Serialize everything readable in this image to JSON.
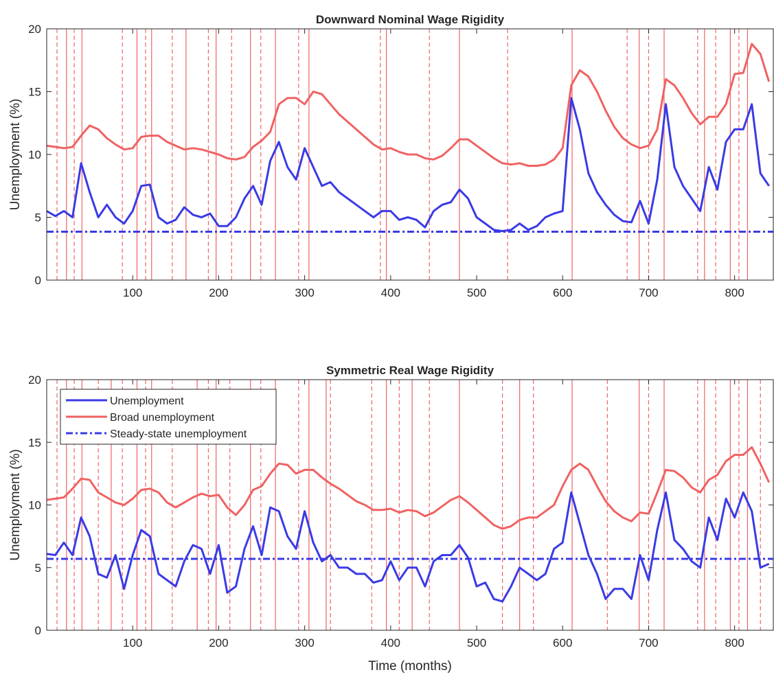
{
  "chart_data": [
    {
      "type": "line",
      "title": "Downward Nominal Wage Rigidity",
      "y_label": "Unemployment (%)",
      "xlim": [
        0,
        845
      ],
      "ylim": [
        0,
        20
      ],
      "xticks": [
        100,
        200,
        300,
        400,
        500,
        600,
        700,
        800
      ],
      "yticks": [
        0,
        5,
        10,
        15,
        20
      ],
      "x": [
        0,
        10,
        20,
        30,
        40,
        50,
        60,
        70,
        80,
        90,
        100,
        110,
        120,
        130,
        140,
        150,
        160,
        170,
        180,
        190,
        200,
        210,
        220,
        230,
        240,
        250,
        260,
        270,
        280,
        290,
        300,
        310,
        320,
        330,
        340,
        350,
        360,
        370,
        380,
        390,
        400,
        410,
        420,
        430,
        440,
        450,
        460,
        470,
        480,
        490,
        500,
        510,
        520,
        530,
        540,
        550,
        560,
        570,
        580,
        590,
        600,
        610,
        620,
        630,
        640,
        650,
        660,
        670,
        680,
        690,
        700,
        710,
        720,
        730,
        740,
        750,
        760,
        770,
        780,
        790,
        800,
        810,
        820,
        830,
        840
      ],
      "series": [
        {
          "color": "#3a3ae6",
          "values": [
            5.5,
            5.1,
            5.5,
            5.0,
            9.3,
            7.0,
            5.0,
            6.0,
            5.0,
            4.5,
            5.5,
            7.5,
            7.6,
            5.0,
            4.5,
            4.8,
            5.8,
            5.2,
            5.0,
            5.3,
            4.3,
            4.3,
            5.0,
            6.5,
            7.5,
            6.0,
            9.5,
            11.0,
            9.0,
            8.0,
            10.5,
            9.0,
            7.5,
            7.8,
            7.0,
            6.5,
            6.0,
            5.5,
            5.0,
            5.5,
            5.5,
            4.8,
            5.0,
            4.8,
            4.2,
            5.5,
            6.0,
            6.2,
            7.2,
            6.5,
            5.0,
            4.5,
            4.0,
            3.9,
            4.0,
            4.5,
            4.0,
            4.3,
            5.0,
            5.3,
            5.5,
            14.5,
            12.0,
            8.5,
            7.0,
            6.0,
            5.2,
            4.7,
            4.6,
            6.3,
            4.5,
            8.0,
            14.0,
            9.0,
            7.5,
            6.5,
            5.5,
            9.0,
            7.2,
            11.0,
            12.0,
            12.0,
            14.0,
            8.5,
            7.5
          ]
        },
        {
          "color": "#f06262",
          "values": [
            10.7,
            10.6,
            10.5,
            10.6,
            11.5,
            12.3,
            12.0,
            11.3,
            10.8,
            10.4,
            10.5,
            11.4,
            11.5,
            11.5,
            11.0,
            10.7,
            10.4,
            10.5,
            10.4,
            10.2,
            10.0,
            9.7,
            9.6,
            9.8,
            10.6,
            11.1,
            11.8,
            14.0,
            14.5,
            14.5,
            14.0,
            15.0,
            14.8,
            14.0,
            13.2,
            12.6,
            12.0,
            11.4,
            10.8,
            10.4,
            10.5,
            10.2,
            10.0,
            10.0,
            9.7,
            9.6,
            9.9,
            10.5,
            11.2,
            11.2,
            10.7,
            10.2,
            9.7,
            9.3,
            9.2,
            9.3,
            9.1,
            9.1,
            9.2,
            9.6,
            10.5,
            15.5,
            16.7,
            16.2,
            15.0,
            13.5,
            12.2,
            11.3,
            10.8,
            10.5,
            10.7,
            12.0,
            16.0,
            15.5,
            14.5,
            13.3,
            12.4,
            13.0,
            13.0,
            14.0,
            16.4,
            16.5,
            18.8,
            18.0,
            15.8
          ]
        },
        {
          "color": "#3a3ae6",
          "style": "dashdot",
          "value": 3.85
        }
      ],
      "vlines": {
        "color": "#f06262",
        "solid": [
          23,
          41,
          105,
          122,
          162,
          197,
          237,
          266,
          305,
          395,
          480,
          611,
          689,
          718,
          765,
          795,
          815
        ],
        "dashed": [
          12,
          32,
          88,
          115,
          146,
          188,
          215,
          249,
          293,
          388,
          445,
          536,
          675,
          700,
          757,
          778,
          805
        ]
      }
    },
    {
      "type": "line",
      "title": "Symmetric Real Wage Rigidity",
      "y_label": "Unemployment (%)",
      "x_label": "Time (months)",
      "xlim": [
        0,
        845
      ],
      "ylim": [
        0,
        20
      ],
      "xticks": [
        100,
        200,
        300,
        400,
        500,
        600,
        700,
        800
      ],
      "yticks": [
        0,
        5,
        10,
        15,
        20
      ],
      "legend": "upper left",
      "x": [
        0,
        10,
        20,
        30,
        40,
        50,
        60,
        70,
        80,
        90,
        100,
        110,
        120,
        130,
        140,
        150,
        160,
        170,
        180,
        190,
        200,
        210,
        220,
        230,
        240,
        250,
        260,
        270,
        280,
        290,
        300,
        310,
        320,
        330,
        340,
        350,
        360,
        370,
        380,
        390,
        400,
        410,
        420,
        430,
        440,
        450,
        460,
        470,
        480,
        490,
        500,
        510,
        520,
        530,
        540,
        550,
        560,
        570,
        580,
        590,
        600,
        610,
        620,
        630,
        640,
        650,
        660,
        670,
        680,
        690,
        700,
        710,
        720,
        730,
        740,
        750,
        760,
        770,
        780,
        790,
        800,
        810,
        820,
        830,
        840
      ],
      "series": [
        {
          "name": "Unemployment",
          "color": "#3a3ae6",
          "values": [
            6.1,
            6.0,
            7.0,
            6.0,
            9.0,
            7.5,
            4.5,
            4.2,
            6.0,
            3.3,
            6.0,
            8.0,
            7.5,
            4.5,
            4.0,
            3.5,
            5.5,
            6.8,
            6.5,
            4.5,
            6.8,
            3.0,
            3.5,
            6.5,
            8.3,
            6.0,
            9.8,
            9.5,
            7.5,
            6.5,
            9.5,
            7.0,
            5.5,
            6.0,
            5.0,
            5.0,
            4.5,
            4.5,
            3.8,
            4.0,
            5.5,
            4.0,
            5.0,
            5.0,
            3.5,
            5.5,
            6.0,
            6.0,
            6.8,
            5.8,
            3.5,
            3.8,
            2.5,
            2.3,
            3.5,
            5.0,
            4.5,
            4.0,
            4.5,
            6.5,
            7.0,
            11.0,
            8.5,
            6.0,
            4.5,
            2.5,
            3.3,
            3.3,
            2.5,
            6.0,
            4.0,
            8.0,
            11.0,
            7.2,
            6.5,
            5.5,
            5.0,
            9.0,
            7.2,
            10.5,
            9.0,
            11.0,
            9.5,
            5.0,
            5.3
          ]
        },
        {
          "name": "Broad unemployment",
          "color": "#f06262",
          "values": [
            10.4,
            10.5,
            10.6,
            11.3,
            12.1,
            12.0,
            11.0,
            10.6,
            10.2,
            10.0,
            10.5,
            11.2,
            11.3,
            11.0,
            10.2,
            9.8,
            10.2,
            10.6,
            10.9,
            10.7,
            10.8,
            9.8,
            9.2,
            10.0,
            11.2,
            11.5,
            12.5,
            13.3,
            13.2,
            12.5,
            12.8,
            12.8,
            12.2,
            11.7,
            11.3,
            10.8,
            10.3,
            10.0,
            9.6,
            9.6,
            9.7,
            9.4,
            9.6,
            9.5,
            9.1,
            9.4,
            9.9,
            10.4,
            10.7,
            10.2,
            9.6,
            9.0,
            8.4,
            8.1,
            8.3,
            8.8,
            9.0,
            9.0,
            9.5,
            10.0,
            11.5,
            12.8,
            13.3,
            12.8,
            11.5,
            10.3,
            9.5,
            9.0,
            8.7,
            9.4,
            9.3,
            11.0,
            12.8,
            12.7,
            12.2,
            11.4,
            11.0,
            12.0,
            12.4,
            13.5,
            14.0,
            14.0,
            14.6,
            13.3,
            11.8
          ]
        },
        {
          "name": "Steady-state unemployment",
          "color": "#3a3ae6",
          "style": "dashdot",
          "value": 5.7
        }
      ],
      "vlines": {
        "color": "#f06262",
        "solid": [
          23,
          41,
          75,
          105,
          122,
          175,
          197,
          237,
          266,
          305,
          325,
          395,
          425,
          480,
          550,
          611,
          689,
          718,
          765,
          795,
          815
        ],
        "dashed": [
          12,
          32,
          60,
          88,
          115,
          146,
          188,
          213,
          249,
          293,
          330,
          378,
          410,
          445,
          530,
          566,
          652,
          700,
          757,
          778,
          805,
          830
        ]
      }
    }
  ]
}
